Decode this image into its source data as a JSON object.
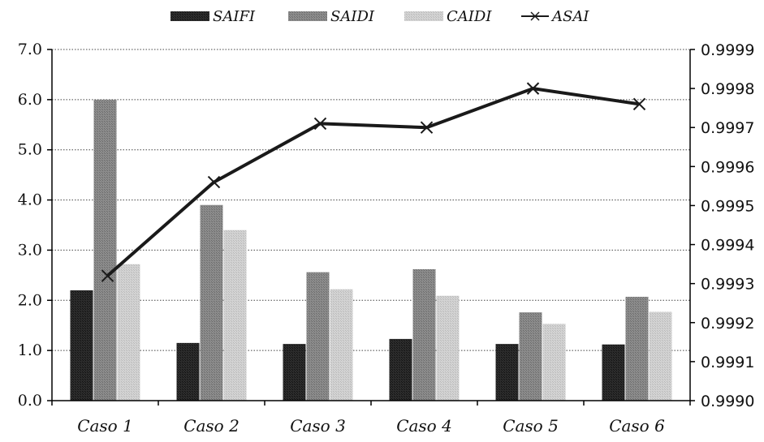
{
  "chart_data": {
    "type": "bar",
    "categories": [
      "Caso 1",
      "Caso 2",
      "Caso 3",
      "Caso 4",
      "Caso 5",
      "Caso 6"
    ],
    "series": [
      {
        "name": "SAIFI",
        "type": "bar",
        "axis": "left",
        "color": "#2a2a2a",
        "values": [
          2.2,
          1.15,
          1.13,
          1.23,
          1.13,
          1.12
        ]
      },
      {
        "name": "SAIDI",
        "type": "bar",
        "axis": "left",
        "color": "#8a8a8a",
        "values": [
          6.0,
          3.9,
          2.56,
          2.62,
          1.76,
          2.07
        ]
      },
      {
        "name": "CAIDI",
        "type": "bar",
        "axis": "left",
        "color": "#d0d0d0",
        "values": [
          2.72,
          3.4,
          2.22,
          2.09,
          1.53,
          1.77
        ]
      },
      {
        "name": "ASAI",
        "type": "line",
        "axis": "right",
        "color": "#1a1a1a",
        "marker": "x",
        "values": [
          0.99932,
          0.99956,
          0.99971,
          0.9997,
          0.9998,
          0.99976
        ]
      }
    ],
    "y_left": {
      "range": [
        0,
        7
      ],
      "ticks": [
        "0.0",
        "1.0",
        "2.0",
        "3.0",
        "4.0",
        "5.0",
        "6.0",
        "7.0"
      ]
    },
    "y_right": {
      "range": [
        0.999,
        0.9999
      ],
      "ticks": [
        "0.9990",
        "0.9991",
        "0.9992",
        "0.9993",
        "0.9994",
        "0.9995",
        "0.9996",
        "0.9997",
        "0.9998",
        "0.9999"
      ]
    },
    "grid": true,
    "grid_style": "dotted",
    "legend_position": "top"
  }
}
